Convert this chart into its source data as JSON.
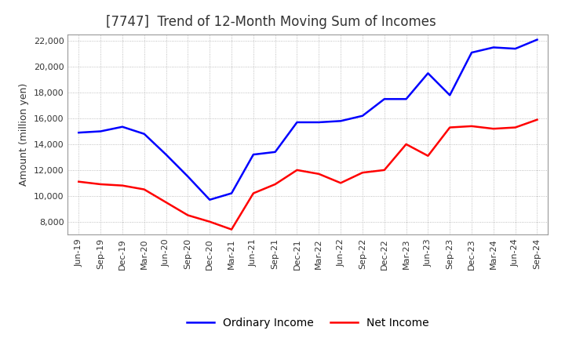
{
  "title": "[7747]  Trend of 12-Month Moving Sum of Incomes",
  "ylabel": "Amount (million yen)",
  "ylim": [
    7000,
    22500
  ],
  "yticks": [
    8000,
    10000,
    12000,
    14000,
    16000,
    18000,
    20000,
    22000
  ],
  "background_color": "#ffffff",
  "plot_bg_color": "#ffffff",
  "grid_color": "#999999",
  "x_labels": [
    "Jun-19",
    "Sep-19",
    "Dec-19",
    "Mar-20",
    "Jun-20",
    "Sep-20",
    "Dec-20",
    "Mar-21",
    "Jun-21",
    "Sep-21",
    "Dec-21",
    "Mar-22",
    "Jun-22",
    "Sep-22",
    "Dec-22",
    "Mar-23",
    "Jun-23",
    "Sep-23",
    "Dec-23",
    "Mar-24",
    "Jun-24",
    "Sep-24"
  ],
  "ordinary_income": [
    14900,
    15000,
    15350,
    14800,
    13200,
    11500,
    9700,
    10200,
    13200,
    13400,
    15700,
    15700,
    15800,
    16200,
    17500,
    17500,
    19500,
    17800,
    21100,
    21500,
    21400,
    22100
  ],
  "net_income": [
    11100,
    10900,
    10800,
    10500,
    9500,
    8500,
    8000,
    7400,
    10200,
    10900,
    12000,
    11700,
    11000,
    11800,
    12000,
    14000,
    13100,
    15300,
    15400,
    15200,
    15300,
    15900
  ],
  "ordinary_color": "#0000ff",
  "net_color": "#ff0000",
  "line_width": 1.8,
  "title_fontsize": 12,
  "tick_fontsize": 8,
  "ylabel_fontsize": 9,
  "legend_fontsize": 10
}
